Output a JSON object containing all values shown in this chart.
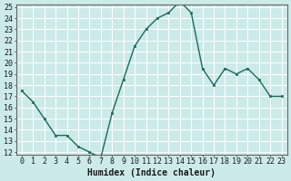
{
  "x": [
    0,
    1,
    2,
    3,
    4,
    5,
    6,
    7,
    8,
    9,
    10,
    11,
    12,
    13,
    14,
    15,
    16,
    17,
    18,
    19,
    20,
    21,
    22,
    23
  ],
  "y": [
    17.5,
    16.5,
    15.0,
    13.5,
    13.5,
    12.5,
    12.0,
    11.5,
    15.5,
    18.5,
    21.5,
    23.0,
    24.0,
    24.5,
    25.5,
    24.5,
    19.5,
    18.0,
    19.5,
    19.0,
    19.5,
    18.5,
    17.0,
    17.0
  ],
  "xlabel": "Humidex (Indice chaleur)",
  "ylim_min": 12,
  "ylim_max": 25,
  "xlim_min": -0.5,
  "xlim_max": 23.5,
  "yticks": [
    12,
    13,
    14,
    15,
    16,
    17,
    18,
    19,
    20,
    21,
    22,
    23,
    24,
    25
  ],
  "xtick_positions": [
    0,
    1,
    2,
    3,
    4,
    5,
    6,
    7,
    8,
    9,
    10,
    11,
    12,
    13,
    14,
    15,
    16,
    17,
    18,
    19,
    20,
    21,
    22,
    23
  ],
  "xtick_labels": [
    "0",
    "1",
    "2",
    "3",
    "4",
    "5",
    "6",
    "7",
    "8",
    "9",
    "10",
    "11",
    "12",
    "13",
    "14",
    "15",
    "16",
    "17",
    "18",
    "19",
    "20",
    "21",
    "22",
    "23"
  ],
  "line_color": "#1a6b5a",
  "marker_color": "#1a6b5a",
  "bg_color": "#cceae8",
  "grid_color": "#ffffff",
  "xlabel_fontsize": 7,
  "tick_fontsize": 6,
  "linewidth": 1.0,
  "markersize": 2.0
}
